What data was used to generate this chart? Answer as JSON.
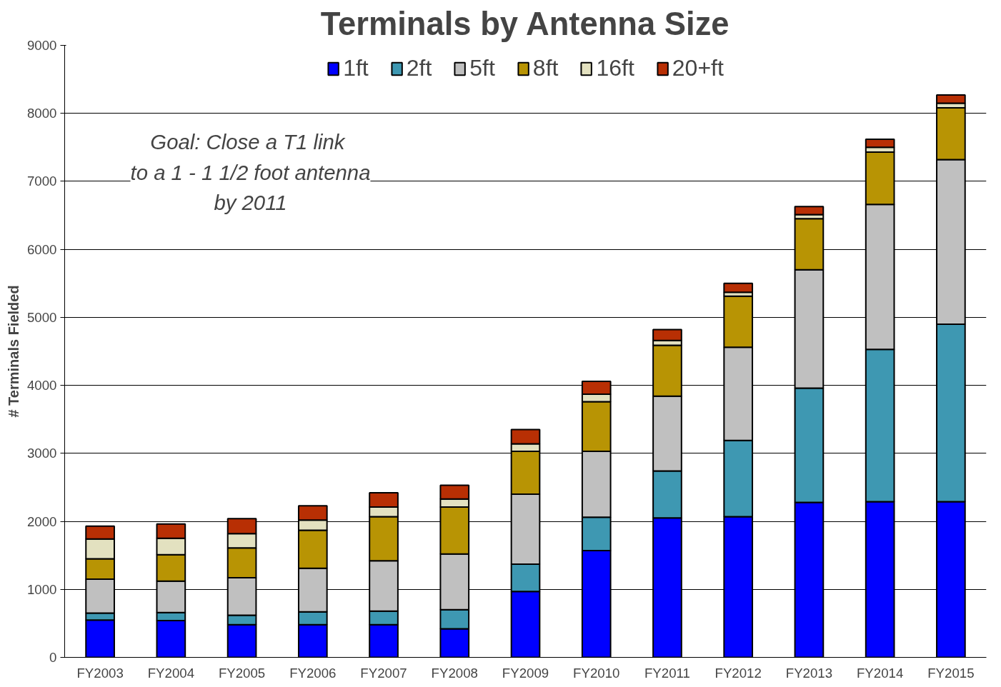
{
  "chart_data": {
    "type": "bar",
    "stacked": true,
    "title": "Terminals by Antenna Size",
    "ylabel": "# Terminals Fielded",
    "categories": [
      "FY2003",
      "FY2004",
      "FY2005",
      "FY2006",
      "FY2007",
      "FY2008",
      "FY2009",
      "FY2010",
      "FY2011",
      "FY2012",
      "FY2013",
      "FY2014",
      "FY2015"
    ],
    "series": [
      {
        "name": "1ft",
        "color": "#0000ff",
        "values": [
          550,
          540,
          480,
          480,
          480,
          420,
          970,
          1570,
          2050,
          2070,
          2280,
          2290,
          2290
        ]
      },
      {
        "name": "2ft",
        "color": "#3e98b2",
        "values": [
          100,
          120,
          140,
          190,
          200,
          280,
          400,
          490,
          690,
          1120,
          1680,
          2240,
          2610
        ]
      },
      {
        "name": "5ft",
        "color": "#c0c0c0",
        "values": [
          500,
          460,
          550,
          640,
          740,
          820,
          1030,
          970,
          1100,
          1370,
          1740,
          2130,
          2420
        ]
      },
      {
        "name": "8ft",
        "color": "#b89404",
        "values": [
          300,
          390,
          440,
          560,
          650,
          690,
          630,
          730,
          750,
          750,
          750,
          770,
          760
        ]
      },
      {
        "name": "16ft",
        "color": "#e3e1c0",
        "values": [
          290,
          240,
          210,
          150,
          140,
          120,
          110,
          110,
          70,
          60,
          60,
          70,
          70
        ]
      },
      {
        "name": "20+ft",
        "color": "#b82f04",
        "values": [
          190,
          210,
          220,
          210,
          210,
          200,
          210,
          190,
          160,
          130,
          120,
          120,
          120
        ]
      }
    ],
    "ylim": [
      0,
      9000
    ],
    "yticks": [
      0,
      1000,
      2000,
      3000,
      4000,
      5000,
      6000,
      7000,
      8000,
      9000
    ],
    "grid": "y",
    "legend": "top",
    "annotations": [
      "Goal:  Close a T1 link\nto a 1 - 1 1/2 foot antenna\nby 2011"
    ]
  }
}
